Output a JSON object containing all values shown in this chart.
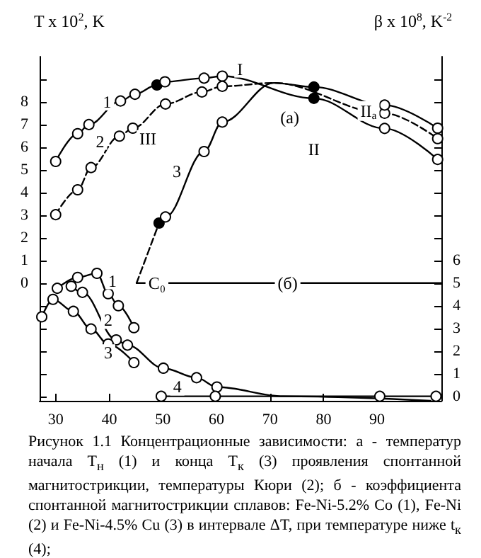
{
  "chart_data": {
    "type": "line",
    "ylabel": "T x 10$^{2}$, K",
    "y2label": "β x 10$^{8}$, K$^{-2}$",
    "xlim": [
      27,
      102
    ],
    "xticks": [
      30,
      40,
      50,
      60,
      70,
      80,
      90
    ],
    "ylim": [
      -5.2,
      10
    ],
    "yticks": [
      {
        "value": -5,
        "label": null
      },
      {
        "value": -4,
        "label": null
      },
      {
        "value": -3,
        "label": null
      },
      {
        "value": -2,
        "label": null
      },
      {
        "value": -1,
        "label": null
      },
      0,
      1,
      2,
      3,
      4,
      5,
      6,
      7,
      8,
      {
        "value": 9,
        "label": null
      }
    ],
    "y2lim": [
      -0.2,
      15
    ],
    "y2ticks": [
      0,
      1,
      2,
      3,
      4,
      5,
      6,
      {
        "value": 7,
        "label": null
      },
      {
        "value": 8,
        "label": null
      },
      {
        "value": 9,
        "label": null
      },
      {
        "value": 10,
        "label": null
      },
      {
        "value": 11,
        "label": null
      },
      {
        "value": 12,
        "label": null
      },
      {
        "value": 13,
        "label": null
      },
      {
        "value": 14,
        "label": null
      }
    ],
    "grid": false,
    "marker": "circle",
    "series": [
      {
        "color": "#000000",
        "line_style": "solid",
        "x": [
          30,
          34.1,
          36.2,
          42.1,
          44.8,
          48.9,
          50.4,
          57.7,
          61.1,
          78.2,
          91.4,
          101.3
        ],
        "values": [
          5.37,
          6.6,
          7.0,
          8.04,
          8.34,
          8.75,
          8.89,
          9.05,
          9.14,
          8.16,
          6.83,
          5.46
        ],
        "colors": [
          "#ffffff",
          "#ffffff",
          "#ffffff",
          "#ffffff",
          "#ffffff",
          "#000000",
          "#ffffff",
          "#ffffff",
          "#ffffff",
          "#000000",
          "#ffffff",
          "#ffffff"
        ]
      },
      {
        "color": "#000000",
        "line_style": "dashed",
        "x": [
          30,
          34.1,
          36.6,
          41.9,
          44.4,
          50.5,
          57.3,
          61.1,
          70.7,
          91.4,
          101.3
        ],
        "values": [
          3.02,
          4.12,
          5.1,
          6.49,
          6.84,
          7.91,
          8.44,
          8.69,
          8.84,
          7.5,
          6.38
        ],
        "colors": [
          "#ffffff",
          "#ffffff",
          "#ffffff",
          "#ffffff",
          "#ffffff",
          "#ffffff",
          "#ffffff",
          "#ffffff",
          null,
          "#ffffff",
          "#ffffff"
        ]
      },
      {
        "color": "#000000",
        "line_style": "solid",
        "x": [
          49.3,
          50.5,
          57.7,
          61.1,
          70.7,
          78.2,
          91.4,
          101.3
        ],
        "values": [
          2.65,
          2.92,
          5.81,
          7.11,
          8.84,
          8.66,
          7.86,
          6.84
        ],
        "colors": [
          "#000000",
          "#ffffff",
          "#ffffff",
          "#ffffff",
          null,
          "#000000",
          "#ffffff",
          "#ffffff"
        ]
      },
      {
        "color": "#000000",
        "line_style": "dashed",
        "marker": "none",
        "x": [
          45.1,
          49.3
        ],
        "values": [
          0,
          2.65
        ]
      },
      {
        "color": "#000000",
        "line_style": "solid",
        "marker": "none",
        "x": [
          45.1,
          102
        ],
        "values": [
          0,
          0
        ]
      },
      {
        "color": "#000000",
        "line_style": "solid",
        "axis": "y2",
        "x": [
          30.3,
          34.1,
          37.7,
          39.8,
          41.7,
          44.6
        ],
        "values": [
          4.77,
          5.25,
          5.43,
          4.53,
          4.0,
          3.03
        ]
      },
      {
        "color": "#000000",
        "line_style": "solid",
        "axis": "y2",
        "x": [
          32.9,
          35,
          41.3,
          43.4,
          50.1,
          56.3,
          60.1,
          72.5,
          100
        ],
        "values": [
          4.86,
          4.59,
          2.49,
          2.26,
          1.24,
          0.82,
          0.41,
          0,
          -0.2
        ],
        "colors": [
          "#ffffff",
          "#ffffff",
          "#ffffff",
          "#ffffff",
          "#ffffff",
          "#ffffff",
          "#ffffff",
          null,
          null
        ]
      },
      {
        "color": "#000000",
        "line_style": "solid",
        "axis": "y2",
        "x": [
          27.4,
          29.5,
          33.3,
          36.6,
          39.8,
          44.6
        ],
        "values": [
          3.51,
          4.28,
          3.75,
          2.97,
          2.31,
          1.49
        ]
      },
      {
        "color": "#000000",
        "line_style": "solid",
        "axis": "y2",
        "x": [
          49.7,
          59.8,
          90.5,
          101
        ],
        "values": [
          0,
          0,
          0,
          0
        ]
      }
    ],
    "annotations": [
      {
        "text": "1",
        "x": 39.6,
        "y": 8.0
      },
      {
        "text": "2",
        "x": 38.3,
        "y": 6.26
      },
      {
        "text": "3",
        "x": 52.6,
        "y": 4.92
      },
      {
        "text": "I",
        "x": 64.4,
        "y": 9.45
      },
      {
        "text": "III",
        "x": 47.2,
        "y": 6.38
      },
      {
        "text": "II",
        "x": 78.2,
        "y": 5.9
      },
      {
        "text": "II$_{a}$",
        "x": 88.4,
        "y": 7.6
      },
      {
        "text": "(a)",
        "x": 73.7,
        "y": 7.32
      },
      {
        "text": "1",
        "x": 40.6,
        "y": 0.1
      },
      {
        "text": "2",
        "x": 39.8,
        "y": -1.65
      },
      {
        "text": "3",
        "x": 39.8,
        "y": -3.08
      },
      {
        "text": "4",
        "x": 52.7,
        "y": -4.59
      },
      {
        "text": "C₀",
        "x": 48.9,
        "y": 0
      },
      {
        "text": "(б)",
        "x": 73.3,
        "y": 0
      },
      "Рисунок 1.1 Концентрационные зависимости: а - температур начала T$_{н}$ (1) и конца T$_{к}$ (3) проявления спонтанной магнитострикции, температуры Кюри (2); б - коэффициента спонтанной магнитострикции сплавов: Fe-Ni-5.2% Co (1), Fe-Ni (2) и Fe-Ni-4.5% Cu (3) в интервале ΔT, при температуре ниже t$_{к}$ (4);"
    ]
  }
}
